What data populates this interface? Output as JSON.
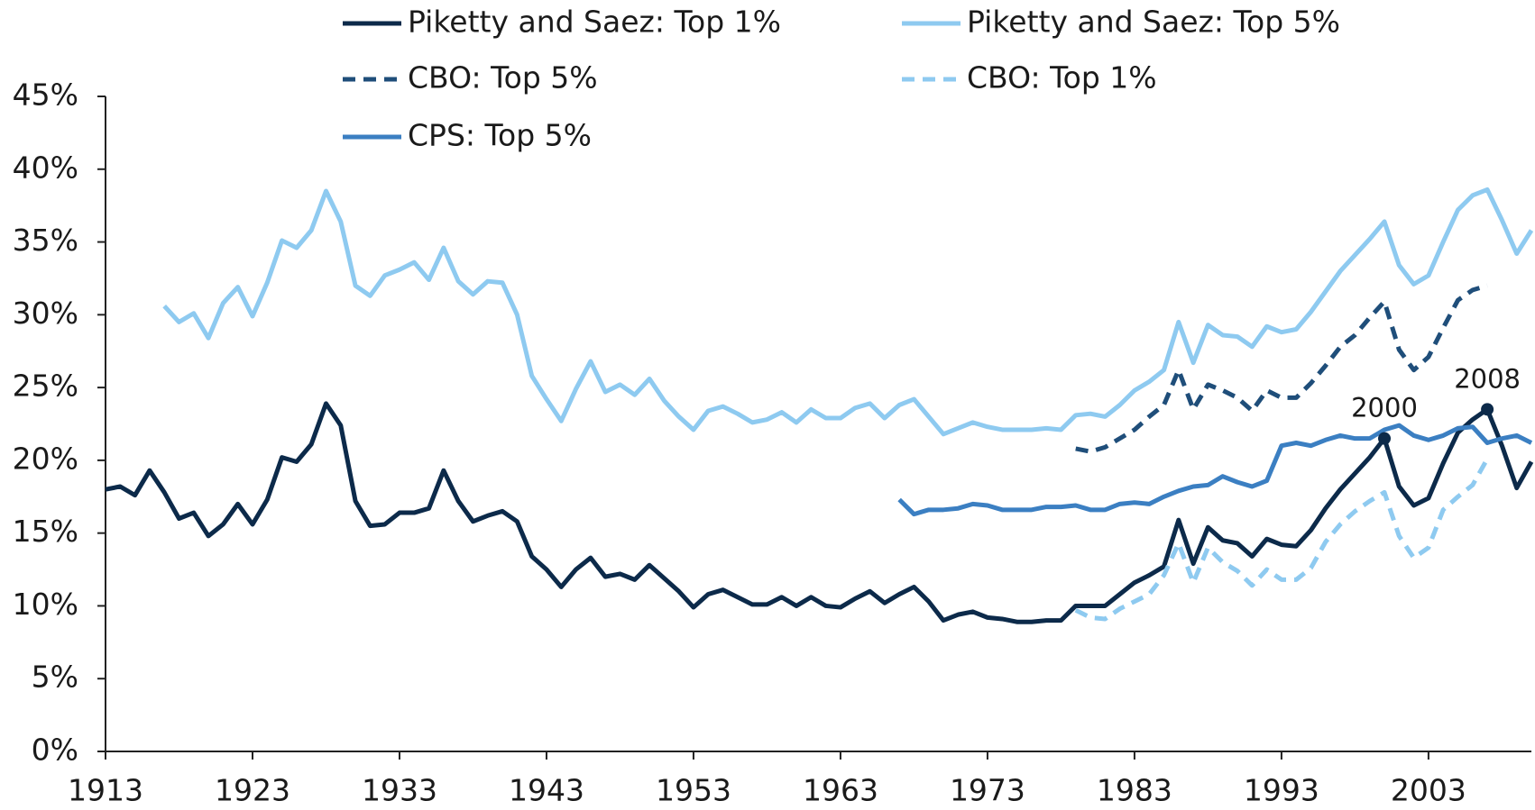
{
  "chart_data": {
    "type": "line",
    "xlim": [
      1913,
      2010
    ],
    "xticks": [
      1913,
      1923,
      1933,
      1943,
      1953,
      1963,
      1973,
      1983,
      1993,
      2003
    ],
    "ylim": [
      0,
      45
    ],
    "yticks": [
      {
        "value": 0,
        "label": "0%"
      },
      {
        "value": 5,
        "label": "5%"
      },
      {
        "value": 10,
        "label": "10%"
      },
      {
        "value": 15,
        "label": "15%"
      },
      {
        "value": 20,
        "label": "20%"
      },
      {
        "value": 25,
        "label": "25%"
      },
      {
        "value": 30,
        "label": "30%"
      },
      {
        "value": 35,
        "label": "35%"
      },
      {
        "value": 40,
        "label": "40%"
      },
      {
        "value": 45,
        "label": "45%"
      }
    ],
    "grid": false,
    "series": [
      {
        "name": "Piketty and Saez: Top 1%",
        "color": "#0c2a4a",
        "dashed": false,
        "x": [
          1913,
          1914,
          1915,
          1916,
          1917,
          1918,
          1919,
          1920,
          1921,
          1922,
          1923,
          1924,
          1925,
          1926,
          1927,
          1928,
          1929,
          1930,
          1931,
          1932,
          1933,
          1934,
          1935,
          1936,
          1937,
          1938,
          1939,
          1940,
          1941,
          1942,
          1943,
          1944,
          1945,
          1946,
          1947,
          1948,
          1949,
          1950,
          1951,
          1952,
          1953,
          1954,
          1955,
          1956,
          1957,
          1958,
          1959,
          1960,
          1961,
          1962,
          1963,
          1964,
          1965,
          1966,
          1967,
          1968,
          1969,
          1970,
          1971,
          1972,
          1973,
          1974,
          1975,
          1976,
          1977,
          1978,
          1979,
          1980,
          1981,
          1982,
          1983,
          1984,
          1985,
          1986,
          1987,
          1988,
          1989,
          1990,
          1991,
          1992,
          1993,
          1994,
          1995,
          1996,
          1997,
          1998,
          1999,
          2000,
          2001,
          2002,
          2003,
          2004,
          2005,
          2006,
          2007,
          2008,
          2009,
          2010
        ],
        "values": [
          18.0,
          18.2,
          17.6,
          19.3,
          17.8,
          16.0,
          16.4,
          14.8,
          15.6,
          17.0,
          15.6,
          17.3,
          20.2,
          19.9,
          21.1,
          23.9,
          22.4,
          17.2,
          15.5,
          15.6,
          16.4,
          16.4,
          16.7,
          19.3,
          17.2,
          15.8,
          16.2,
          16.5,
          15.8,
          13.4,
          12.5,
          11.3,
          12.5,
          13.3,
          12.0,
          12.2,
          11.8,
          12.8,
          11.9,
          11.0,
          9.9,
          10.8,
          11.1,
          10.6,
          10.1,
          10.1,
          10.6,
          10.0,
          10.6,
          10.0,
          9.9,
          10.5,
          11.0,
          10.2,
          10.8,
          11.3,
          10.3,
          9.0,
          9.4,
          9.6,
          9.2,
          9.1,
          8.9,
          8.9,
          9.0,
          9.0,
          10.0,
          10.0,
          10.0,
          10.8,
          11.6,
          12.1,
          12.7,
          15.9,
          12.9,
          15.4,
          14.5,
          14.3,
          13.4,
          14.6,
          14.2,
          14.1,
          15.2,
          16.7,
          18.0,
          19.1,
          20.2,
          21.5,
          18.2,
          16.9,
          17.4,
          19.8,
          21.9,
          22.8,
          23.5,
          21.0,
          18.1,
          19.9
        ]
      },
      {
        "name": "Piketty and Saez: Top 5%",
        "color": "#8ecaf0",
        "dashed": false,
        "x": [
          1917,
          1918,
          1919,
          1920,
          1921,
          1922,
          1923,
          1924,
          1925,
          1926,
          1927,
          1928,
          1929,
          1930,
          1931,
          1932,
          1933,
          1934,
          1935,
          1936,
          1937,
          1938,
          1939,
          1940,
          1941,
          1942,
          1943,
          1944,
          1945,
          1946,
          1947,
          1948,
          1949,
          1950,
          1951,
          1952,
          1953,
          1954,
          1955,
          1956,
          1957,
          1958,
          1959,
          1960,
          1961,
          1962,
          1963,
          1964,
          1965,
          1966,
          1967,
          1968,
          1969,
          1970,
          1971,
          1972,
          1973,
          1974,
          1975,
          1976,
          1977,
          1978,
          1979,
          1980,
          1981,
          1982,
          1983,
          1984,
          1985,
          1986,
          1987,
          1988,
          1989,
          1990,
          1991,
          1992,
          1993,
          1994,
          1995,
          1996,
          1997,
          1998,
          1999,
          2000,
          2001,
          2002,
          2003,
          2004,
          2005,
          2006,
          2007,
          2008,
          2009,
          2010
        ],
        "values": [
          30.6,
          29.5,
          30.1,
          28.4,
          30.8,
          31.9,
          29.9,
          32.2,
          35.1,
          34.6,
          35.8,
          38.5,
          36.4,
          32.0,
          31.3,
          32.7,
          33.1,
          33.6,
          32.4,
          34.6,
          32.3,
          31.4,
          32.3,
          32.2,
          30.0,
          25.8,
          24.2,
          22.7,
          24.9,
          26.8,
          24.7,
          25.2,
          24.5,
          25.6,
          24.1,
          23.0,
          22.1,
          23.4,
          23.7,
          23.2,
          22.6,
          22.8,
          23.3,
          22.6,
          23.5,
          22.9,
          22.9,
          23.6,
          23.9,
          22.9,
          23.8,
          24.2,
          23.0,
          21.8,
          22.2,
          22.6,
          22.3,
          22.1,
          22.1,
          22.1,
          22.2,
          22.1,
          23.1,
          23.2,
          23.0,
          23.8,
          24.8,
          25.4,
          26.2,
          29.5,
          26.7,
          29.3,
          28.6,
          28.5,
          27.8,
          29.2,
          28.8,
          29.0,
          30.2,
          31.6,
          33.0,
          34.1,
          35.2,
          36.4,
          33.4,
          32.1,
          32.7,
          35.0,
          37.2,
          38.2,
          38.6,
          36.5,
          34.2,
          35.8
        ]
      },
      {
        "name": "CBO: Top 5%",
        "color": "#1f4e7a",
        "dashed": true,
        "x": [
          1979,
          1980,
          1981,
          1982,
          1983,
          1984,
          1985,
          1986,
          1987,
          1988,
          1989,
          1990,
          1991,
          1992,
          1993,
          1994,
          1995,
          1996,
          1997,
          1998,
          1999,
          2000,
          2001,
          2002,
          2003,
          2004,
          2005,
          2006,
          2007
        ],
        "values": [
          20.8,
          20.6,
          20.9,
          21.5,
          22.1,
          23.0,
          23.8,
          26.2,
          23.5,
          25.2,
          24.8,
          24.3,
          23.4,
          24.8,
          24.3,
          24.3,
          25.3,
          26.5,
          27.8,
          28.6,
          29.8,
          30.9,
          27.6,
          26.2,
          27.1,
          29.1,
          31.0,
          31.7,
          32.0
        ]
      },
      {
        "name": "CBO: Top 1%",
        "color": "#8ecaf0",
        "dashed": true,
        "x": [
          1979,
          1980,
          1981,
          1982,
          1983,
          1984,
          1985,
          1986,
          1987,
          1988,
          1989,
          1990,
          1991,
          1992,
          1993,
          1994,
          1995,
          1996,
          1997,
          1998,
          1999,
          2000,
          2001,
          2002,
          2003,
          2004,
          2005,
          2006,
          2007
        ],
        "values": [
          9.7,
          9.2,
          9.1,
          9.8,
          10.3,
          10.8,
          12.1,
          14.3,
          11.6,
          14.0,
          13.0,
          12.4,
          11.4,
          12.5,
          11.8,
          11.8,
          12.6,
          14.4,
          15.6,
          16.5,
          17.2,
          17.8,
          14.8,
          13.3,
          14.0,
          16.6,
          17.5,
          18.3,
          20.1
        ]
      },
      {
        "name": "CPS: Top 5%",
        "color": "#3b7fc2",
        "dashed": false,
        "x": [
          1967,
          1968,
          1969,
          1970,
          1971,
          1972,
          1973,
          1974,
          1975,
          1976,
          1977,
          1978,
          1979,
          1980,
          1981,
          1982,
          1983,
          1984,
          1985,
          1986,
          1987,
          1988,
          1989,
          1990,
          1991,
          1992,
          1993,
          1994,
          1995,
          1996,
          1997,
          1998,
          1999,
          2000,
          2001,
          2002,
          2003,
          2004,
          2005,
          2006,
          2007,
          2008,
          2009,
          2010
        ],
        "values": [
          17.3,
          16.3,
          16.6,
          16.6,
          16.7,
          17.0,
          16.9,
          16.6,
          16.6,
          16.6,
          16.8,
          16.8,
          16.9,
          16.6,
          16.6,
          17.0,
          17.1,
          17.0,
          17.5,
          17.9,
          18.2,
          18.3,
          18.9,
          18.5,
          18.2,
          18.6,
          21.0,
          21.2,
          21.0,
          21.4,
          21.7,
          21.5,
          21.5,
          22.1,
          22.4,
          21.7,
          21.4,
          21.7,
          22.2,
          22.3,
          21.2,
          21.5,
          21.7,
          21.2
        ]
      }
    ],
    "annotations": [
      {
        "text": "2000",
        "x": 2000,
        "y": 21.5
      },
      {
        "text": "2008",
        "x": 2007,
        "y": 23.5
      }
    ]
  }
}
